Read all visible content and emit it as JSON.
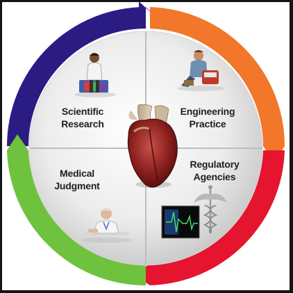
{
  "segments": [
    {
      "id": "scientific-research",
      "line1": "Scientific",
      "line2": "Research",
      "arc_color": "#2b1c84"
    },
    {
      "id": "engineering-practice",
      "line1": "Engineering",
      "line2": "Practice",
      "arc_color": "#f2772a"
    },
    {
      "id": "regulatory-agencies",
      "line1": "Regulatory",
      "line2": "Agencies",
      "arc_color": "#e5152f"
    },
    {
      "id": "medical-judgment",
      "line1": "Medical",
      "line2": "Judgment",
      "arc_color": "#6fc23d"
    }
  ],
  "center_icon": "heart-icon",
  "icons": [
    "scientist-icon",
    "engineer-icon",
    "caduceus-icon",
    "monitor-icon",
    "doctor-icon"
  ]
}
